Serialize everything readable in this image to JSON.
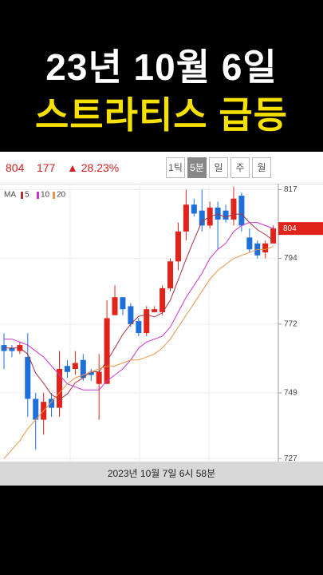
{
  "header": {
    "line1": "23년 10월 6일",
    "line2": "스트라티스 급등"
  },
  "quote": {
    "price": "804",
    "change": "177",
    "change_rate": "▲ 28.23%"
  },
  "buttons": [
    "1틱",
    "5분",
    "일",
    "주",
    "월"
  ],
  "footer": "2023년 10월 7일 6시 58분",
  "chart_data": {
    "type": "candlestick",
    "ma_label": "MA",
    "open": [
      765,
      764,
      763,
      761,
      747,
      740,
      747,
      744,
      758,
      757,
      760,
      756,
      752,
      752,
      775,
      781,
      778,
      773,
      769,
      776,
      776,
      784,
      793,
      803,
      812,
      810,
      805,
      811,
      810,
      807,
      815,
      801,
      799,
      796,
      799
    ],
    "high": [
      769,
      765,
      766,
      769,
      749,
      749,
      749,
      763,
      760,
      763,
      762,
      757,
      762,
      780,
      785,
      781,
      779,
      774,
      778,
      778,
      785,
      794,
      806,
      817,
      814,
      817,
      813,
      813,
      812,
      818,
      816,
      804,
      800,
      800,
      805
    ],
    "low": [
      757,
      761,
      762,
      741,
      730,
      735,
      741,
      741,
      754,
      755,
      753,
      753,
      740,
      752,
      775,
      775,
      771,
      768,
      768,
      776,
      775,
      783,
      790,
      800,
      808,
      803,
      804,
      797,
      806,
      805,
      803,
      796,
      794,
      794,
      799
    ],
    "close": [
      763,
      763,
      765,
      747,
      740,
      746,
      744,
      757,
      756,
      759,
      754,
      755,
      756,
      774,
      781,
      777,
      772,
      769,
      777,
      777,
      784,
      793,
      803,
      812,
      809,
      805,
      811,
      807,
      807,
      814,
      805,
      797,
      795,
      799,
      804
    ],
    "series": [
      {
        "name": "5",
        "color": "#a8323c",
        "values": [
          764,
          764,
          764,
          762,
          755.6,
          752.2,
          748.4,
          746.8,
          748.6,
          752.4,
          754,
          756.2,
          756,
          759.6,
          764,
          768.6,
          772,
          774.6,
          775.2,
          774.4,
          775.8,
          780,
          786.8,
          793.8,
          800.2,
          806.4,
          808,
          808.8,
          807.8,
          808.8,
          808.8,
          806,
          803.6,
          802,
          800
        ]
      },
      {
        "name": "10",
        "color": "#cc33cc",
        "values": [
          767,
          767,
          766,
          765,
          763,
          761,
          758,
          755,
          752,
          751,
          750,
          750,
          750,
          753,
          755,
          757,
          760,
          764,
          766,
          767,
          768,
          771,
          776,
          781,
          785,
          789,
          794,
          797,
          799,
          803,
          805,
          806,
          806,
          805,
          804
        ]
      },
      {
        "name": "20",
        "color": "#e8944a",
        "values": [
          727,
          730,
          733,
          737,
          740,
          743,
          746,
          749,
          752,
          754,
          755,
          756,
          757,
          758,
          758,
          759,
          760,
          760,
          761,
          762,
          764,
          767,
          771,
          775,
          779,
          783,
          787,
          790,
          792,
          794,
          795,
          796,
          797,
          797,
          798
        ]
      }
    ],
    "up_color": "#e0241b",
    "down_color": "#1e6fd9",
    "ylim": [
      726,
      819
    ],
    "yticks": [
      727,
      749,
      772,
      794,
      817
    ],
    "grid": true
  }
}
